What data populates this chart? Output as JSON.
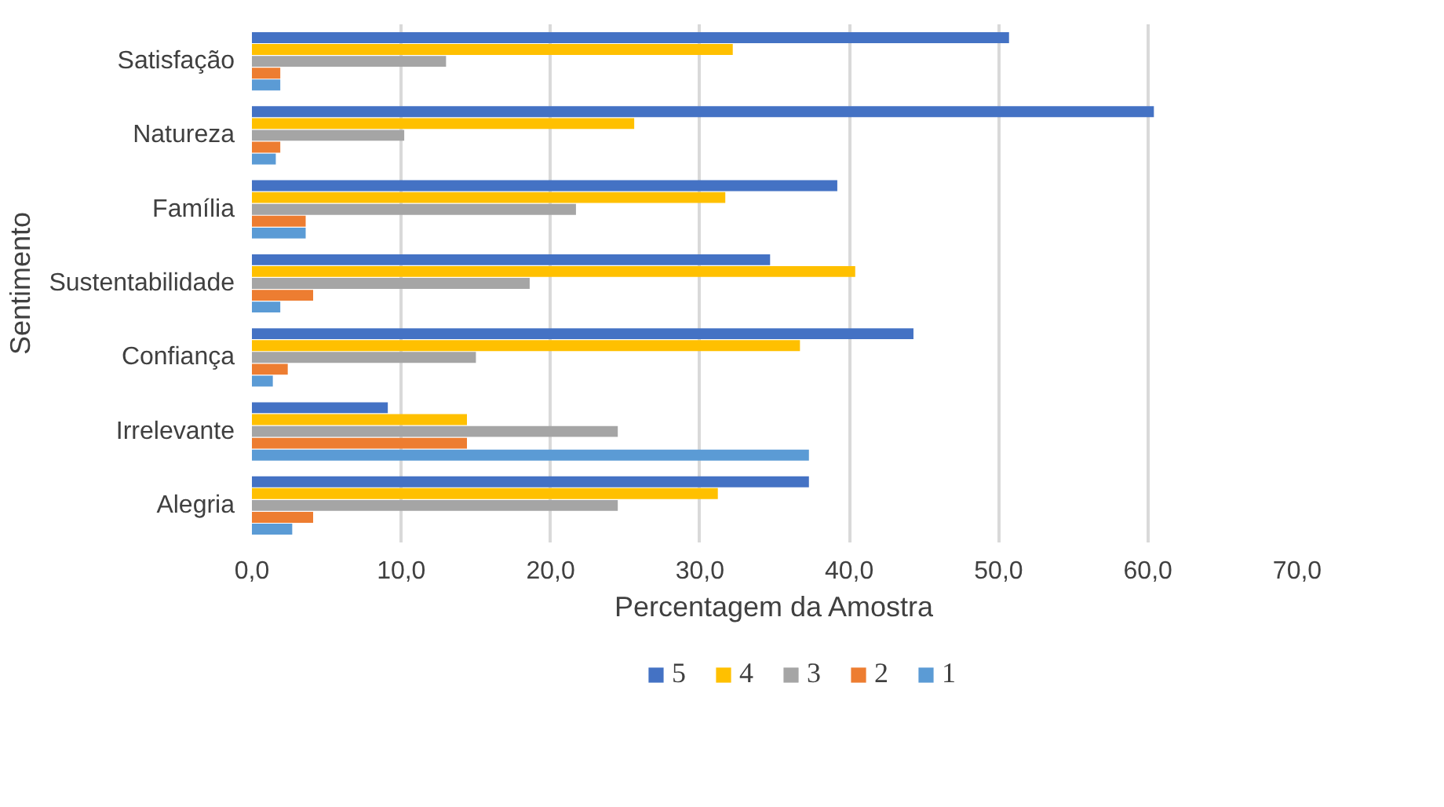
{
  "chart_data": {
    "type": "bar",
    "orientation": "horizontal",
    "xlabel": "Percentagem da Amostra",
    "ylabel": "Sentimento",
    "categories": [
      "Satisfação",
      "Natureza",
      "Família",
      "Sustentabilidade",
      "Confiança",
      "Irrelevante",
      "Alegria"
    ],
    "series": [
      {
        "name": "5",
        "color": "#4472c4",
        "values": [
          50.7,
          60.4,
          39.2,
          34.7,
          44.3,
          9.1,
          37.3
        ]
      },
      {
        "name": "4",
        "color": "#ffc000",
        "values": [
          32.2,
          25.6,
          31.7,
          40.4,
          36.7,
          14.4,
          31.2
        ]
      },
      {
        "name": "3",
        "color": "#a5a5a5",
        "values": [
          13.0,
          10.2,
          21.7,
          18.6,
          15.0,
          24.5,
          24.5
        ]
      },
      {
        "name": "2",
        "color": "#ed7d31",
        "values": [
          1.9,
          1.9,
          3.6,
          4.1,
          2.4,
          14.4,
          4.1
        ]
      },
      {
        "name": "1",
        "color": "#5b9bd5",
        "values": [
          1.9,
          1.6,
          3.6,
          1.9,
          1.4,
          37.3,
          2.7
        ]
      }
    ],
    "xlim": [
      0,
      70
    ],
    "xticks": [
      {
        "value": 0,
        "label": "0,0"
      },
      {
        "value": 10,
        "label": "10,0"
      },
      {
        "value": 20,
        "label": "20,0"
      },
      {
        "value": 30,
        "label": "30,0"
      },
      {
        "value": 40,
        "label": "40,0"
      },
      {
        "value": 50,
        "label": "50,0"
      },
      {
        "value": 60,
        "label": "60,0"
      },
      {
        "value": 70,
        "label": "70,0"
      }
    ],
    "grid": "x",
    "legend": "bottom"
  }
}
